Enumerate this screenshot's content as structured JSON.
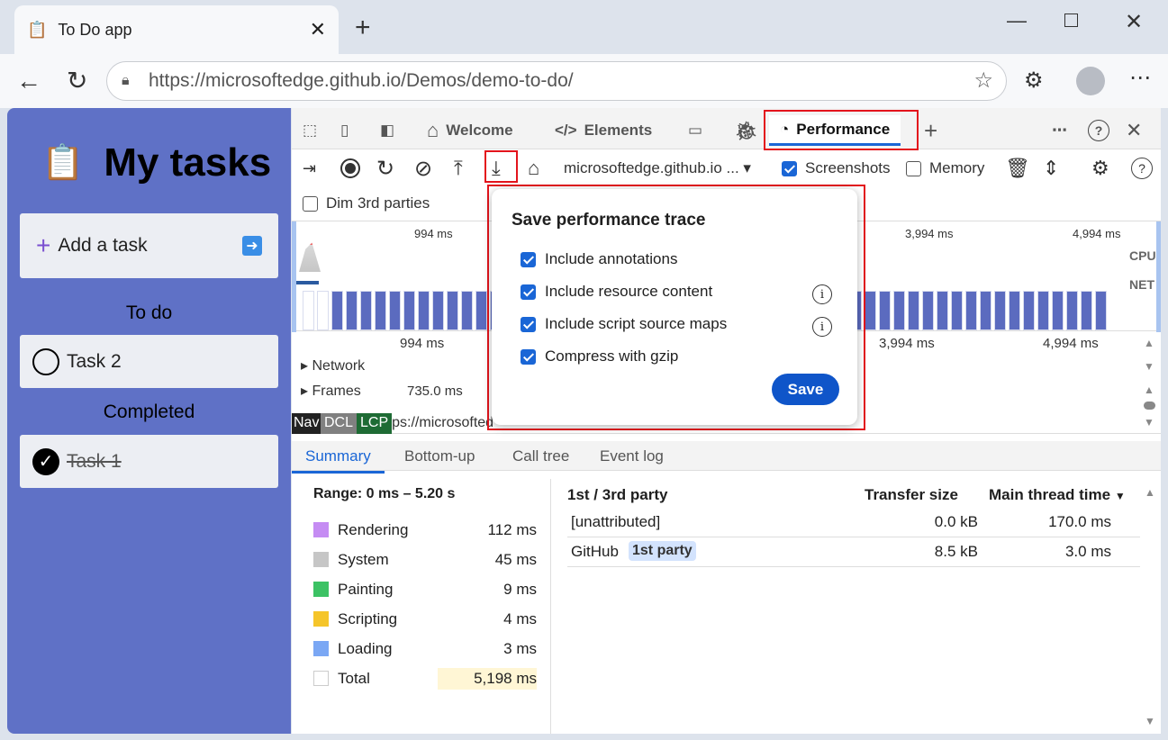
{
  "browser": {
    "tab_title": "To Do app",
    "url_host": "https://microsoftedge.github.io",
    "url_path": "/Demos/demo-to-do/"
  },
  "app": {
    "title": "My tasks",
    "add_task": "Add a task",
    "todo_heading": "To do",
    "todo": [
      "Task 2"
    ],
    "completed_heading": "Completed",
    "completed": [
      "Task 1"
    ]
  },
  "devtools": {
    "tabs": {
      "welcome": "Welcome",
      "elements": "Elements",
      "performance": "Performance"
    },
    "toolbar": {
      "target": "microsoftedge.github.io ...",
      "screenshots": "Screenshots",
      "screenshots_checked": true,
      "memory": "Memory",
      "memory_checked": false,
      "dim": "Dim 3rd parties",
      "dim_checked": false
    },
    "overview": {
      "ticks": [
        "994 ms",
        "3,994 ms",
        "4,994 ms"
      ],
      "cpu": "CPU",
      "net": "NET"
    },
    "timeline": {
      "ticks": [
        "994 ms",
        "3,994 ms",
        "4,994 ms"
      ],
      "network": "Network",
      "frames": "Frames",
      "frame_time": "735.0 ms",
      "markers": [
        "Nav",
        "DCL",
        "LCP"
      ],
      "url_text": "ps://microsofted"
    },
    "bottom_tabs": [
      "Summary",
      "Bottom-up",
      "Call tree",
      "Event log"
    ],
    "summary": {
      "range": "Range: 0 ms – 5.20 s",
      "items": [
        {
          "label": "Rendering",
          "value": "112 ms",
          "color": "#c58cf3"
        },
        {
          "label": "System",
          "value": "45 ms",
          "color": "#c6c6c6"
        },
        {
          "label": "Painting",
          "value": "9 ms",
          "color": "#3cc264"
        },
        {
          "label": "Scripting",
          "value": "4 ms",
          "color": "#f5c52a"
        },
        {
          "label": "Loading",
          "value": "3 ms",
          "color": "#7aa7f4"
        },
        {
          "label": "Total",
          "value": "5,198 ms",
          "color": "#ffffff"
        }
      ]
    },
    "table": {
      "headers": [
        "1st / 3rd party",
        "Transfer size",
        "Main thread time"
      ],
      "rows": [
        {
          "name": "[unattributed]",
          "badge": "",
          "size": "0.0 kB",
          "time": "170.0 ms"
        },
        {
          "name": "GitHub",
          "badge": "1st party",
          "size": "8.5 kB",
          "time": "3.0 ms"
        }
      ]
    }
  },
  "dialog": {
    "title": "Save performance trace",
    "options": [
      {
        "label": "Include annotations",
        "checked": true,
        "info": false
      },
      {
        "label": "Include resource content",
        "checked": true,
        "info": true
      },
      {
        "label": "Include script source maps",
        "checked": true,
        "info": true
      },
      {
        "label": "Compress with gzip",
        "checked": true,
        "info": false
      }
    ],
    "save": "Save"
  }
}
